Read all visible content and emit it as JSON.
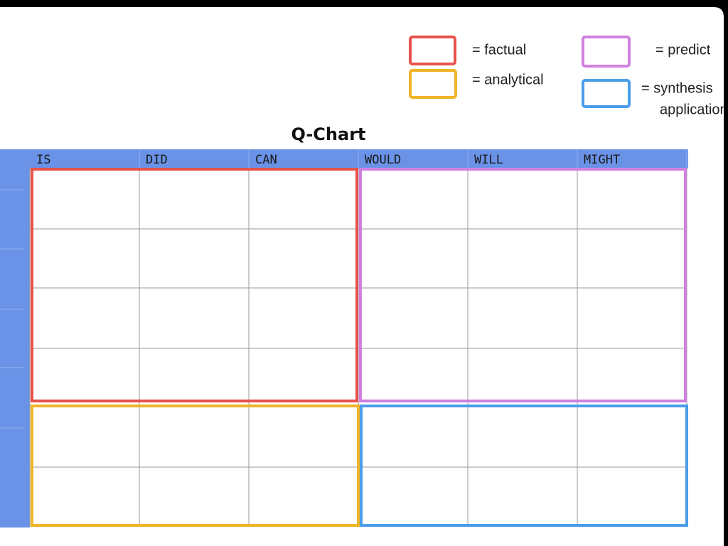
{
  "title": "Q-Chart",
  "legend": [
    {
      "lines": [
        "= factual"
      ],
      "color": "#e8524a"
    },
    {
      "lines": [
        "= analytical"
      ],
      "color": "#f0b428"
    },
    {
      "lines": [
        "= predict"
      ],
      "color": "#cf80e0"
    },
    {
      "lines": [
        "= synthesis",
        "application"
      ],
      "color": "#4a9ee8"
    }
  ],
  "table": {
    "columns": [
      "IS",
      "DID",
      "CAN",
      "WOULD",
      "WILL",
      "MIGHT"
    ],
    "row_count": 6
  }
}
